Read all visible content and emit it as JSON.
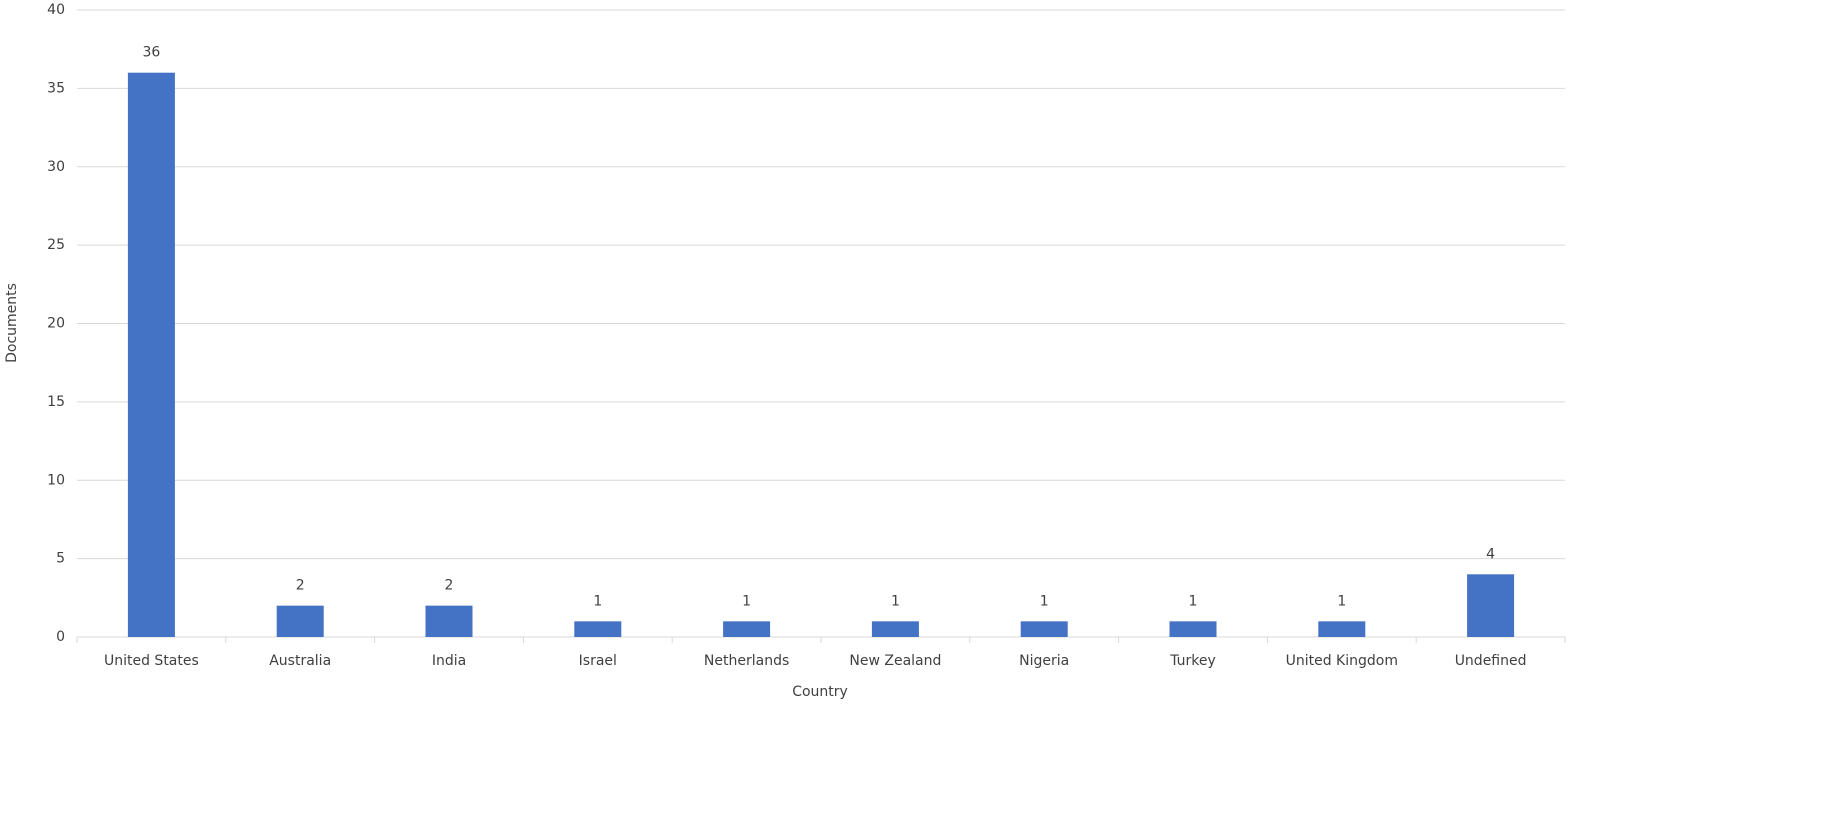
{
  "chart_data": {
    "type": "bar",
    "x_label": "Country",
    "y_label": "Documents",
    "categories": [
      "United States",
      "Australia",
      "India",
      "Israel",
      "Netherlands",
      "New Zealand",
      "Nigeria",
      "Turkey",
      "United Kingdom",
      "Undefined"
    ],
    "values": [
      36,
      2,
      2,
      1,
      1,
      1,
      1,
      1,
      1,
      4
    ],
    "color": "#4472c4",
    "ylim": [
      0,
      40
    ],
    "yticks": [
      0,
      5,
      10,
      15,
      20,
      25,
      30,
      35,
      40
    ],
    "grid": true,
    "data_labels": true
  }
}
